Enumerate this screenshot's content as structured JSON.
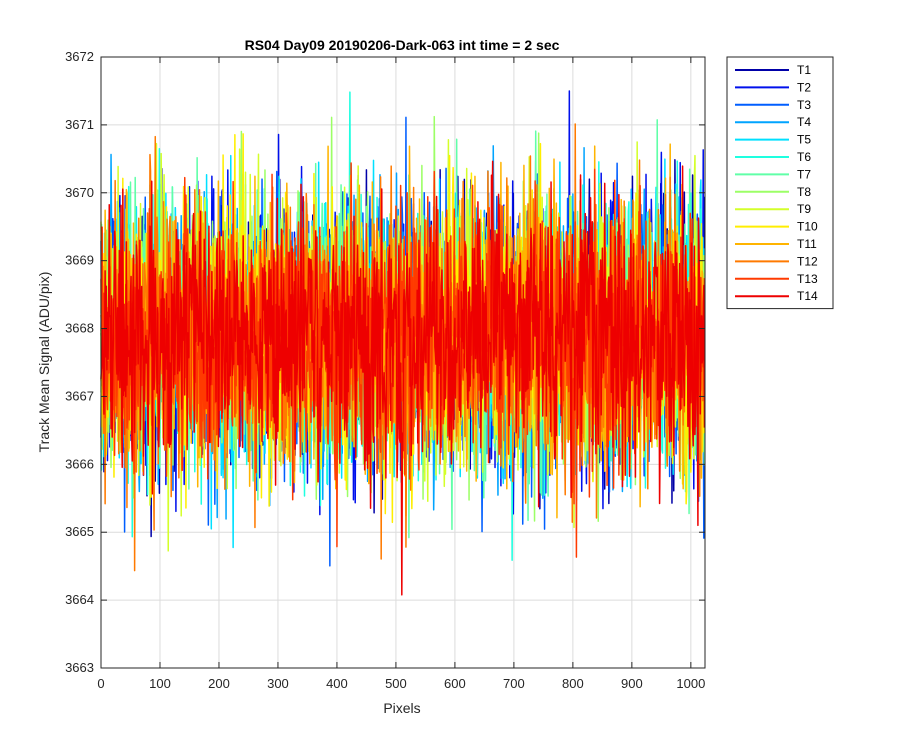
{
  "chart_data": {
    "type": "line",
    "title": "RS04 Day09 20190206-Dark-063 int time = 2 sec",
    "xlabel": "Pixels",
    "ylabel": "Track Mean Signal (ADU/pix)",
    "xlim": [
      0,
      1024
    ],
    "ylim": [
      3663,
      3672
    ],
    "xticks": [
      0,
      100,
      200,
      300,
      400,
      500,
      600,
      700,
      800,
      900,
      1000
    ],
    "yticks": [
      3663,
      3664,
      3665,
      3666,
      3667,
      3668,
      3669,
      3670,
      3671,
      3672
    ],
    "grid": true,
    "legend_position": "outside-top-right",
    "num_points_per_series": 1024,
    "series_center": 3667.9,
    "series_noise_std": 0.95,
    "series": [
      {
        "name": "T1",
        "color": "#0000a8"
      },
      {
        "name": "T2",
        "color": "#0010ec"
      },
      {
        "name": "T3",
        "color": "#005eff"
      },
      {
        "name": "T4",
        "color": "#00a4ff"
      },
      {
        "name": "T5",
        "color": "#00e0ff"
      },
      {
        "name": "T6",
        "color": "#1effe0"
      },
      {
        "name": "T7",
        "color": "#60ffa8"
      },
      {
        "name": "T8",
        "color": "#9cff66"
      },
      {
        "name": "T9",
        "color": "#d4ff2a"
      },
      {
        "name": "T10",
        "color": "#ffee00"
      },
      {
        "name": "T11",
        "color": "#ffb400"
      },
      {
        "name": "T12",
        "color": "#ff7a00"
      },
      {
        "name": "T13",
        "color": "#ff3a00"
      },
      {
        "name": "T14",
        "color": "#ee0000"
      }
    ]
  }
}
